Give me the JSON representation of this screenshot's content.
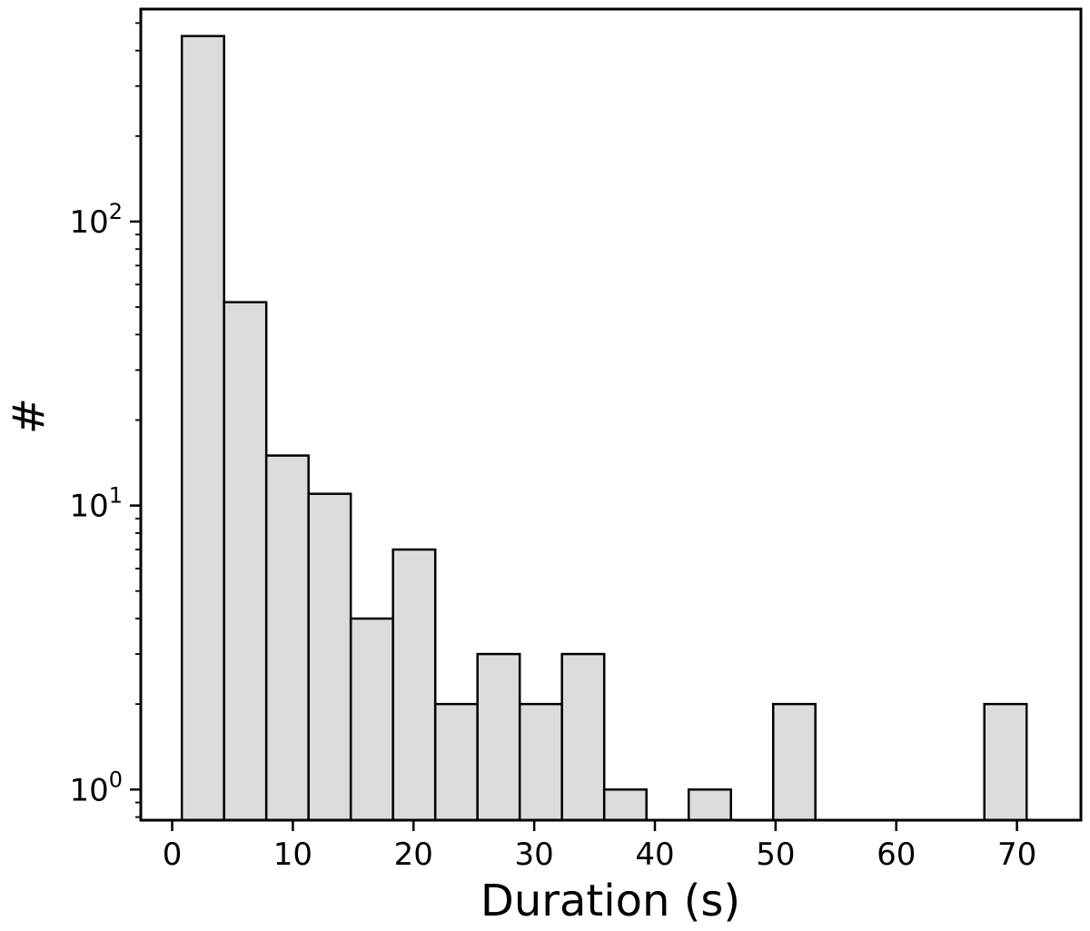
{
  "chart_data": {
    "type": "bar",
    "subtype": "histogram",
    "title": "",
    "xlabel": "Duration (s)",
    "ylabel": "#",
    "yscale": "log",
    "xlim": [
      -2.6,
      75.3
    ],
    "ylim": [
      0.78,
      560
    ],
    "grid": false,
    "legend": null,
    "bar_color": "#dcdcdc",
    "edge_color": "#000000",
    "bins": [
      {
        "x0": 0.8,
        "x1": 4.3,
        "count": 450
      },
      {
        "x0": 4.3,
        "x1": 7.8,
        "count": 52
      },
      {
        "x0": 7.8,
        "x1": 11.3,
        "count": 15
      },
      {
        "x0": 11.3,
        "x1": 14.8,
        "count": 11
      },
      {
        "x0": 14.8,
        "x1": 18.3,
        "count": 4
      },
      {
        "x0": 18.3,
        "x1": 21.8,
        "count": 7
      },
      {
        "x0": 21.8,
        "x1": 25.3,
        "count": 2
      },
      {
        "x0": 25.3,
        "x1": 28.8,
        "count": 3
      },
      {
        "x0": 28.8,
        "x1": 32.3,
        "count": 2
      },
      {
        "x0": 32.3,
        "x1": 35.8,
        "count": 3
      },
      {
        "x0": 35.8,
        "x1": 39.3,
        "count": 1
      },
      {
        "x0": 42.8,
        "x1": 46.3,
        "count": 1
      },
      {
        "x0": 49.8,
        "x1": 53.3,
        "count": 2
      },
      {
        "x0": 67.3,
        "x1": 70.8,
        "count": 2
      }
    ],
    "x_ticks": [
      {
        "value": 0,
        "label": "0"
      },
      {
        "value": 10,
        "label": "10"
      },
      {
        "value": 20,
        "label": "20"
      },
      {
        "value": 30,
        "label": "30"
      },
      {
        "value": 40,
        "label": "40"
      },
      {
        "value": 50,
        "label": "50"
      },
      {
        "value": 60,
        "label": "60"
      },
      {
        "value": 70,
        "label": "70"
      }
    ],
    "y_ticks": [
      {
        "value": 1,
        "base": "10",
        "exp": "0"
      },
      {
        "value": 10,
        "base": "10",
        "exp": "1"
      },
      {
        "value": 100,
        "base": "10",
        "exp": "2"
      }
    ]
  }
}
